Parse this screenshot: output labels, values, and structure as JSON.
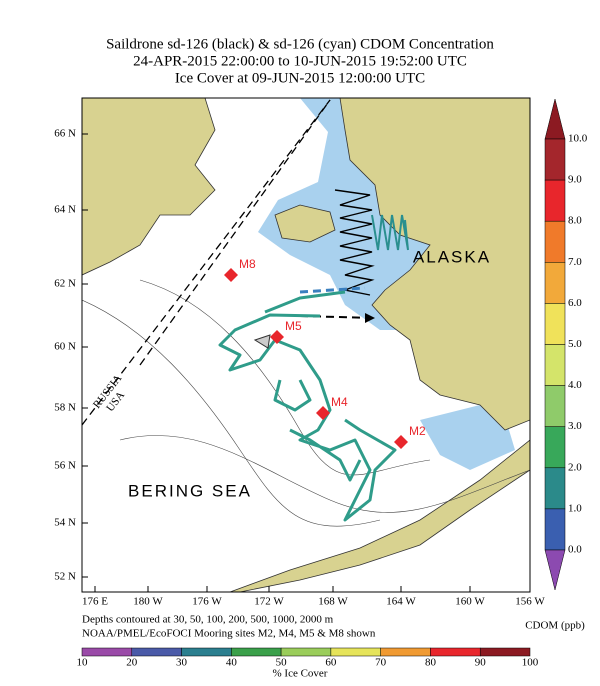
{
  "title": [
    "Saildrone sd-126 (black) & sd-126 (cyan) CDOM Concentration",
    "24-APR-2015 22:00:00 to 10-JUN-2015 19:52:00 UTC",
    "Ice Cover at 09-JUN-2015 12:00:00 UTC"
  ],
  "map": {
    "lat_labels": [
      "66 N",
      "64 N",
      "62 N",
      "60 N",
      "58 N",
      "56 N",
      "54 N",
      "52 N"
    ],
    "lon_labels": [
      "176 E",
      "180 W",
      "176 W",
      "172 W",
      "168 W",
      "164 W",
      "160 W",
      "156 W"
    ],
    "place_labels": [
      "ALASKA",
      "BERING SEA",
      "RUSSIA",
      "USA"
    ],
    "moorings": [
      "M8",
      "M5",
      "M4",
      "M2"
    ]
  },
  "colorbar": {
    "labels": [
      "10.0",
      "9.0",
      "8.0",
      "7.0",
      "6.0",
      "5.0",
      "4.0",
      "3.0",
      "2.0",
      "1.0",
      "0.0"
    ],
    "title": "CDOM (ppb)"
  },
  "notes": [
    "Depths contoured at 30, 50, 100, 200, 500, 1000, 2000 m",
    "NOAA/PMEL/EcoFOCI Mooring sites M2, M4, M5 & M8 shown"
  ],
  "ice_bar": {
    "labels": [
      "10",
      "20",
      "30",
      "40",
      "50",
      "60",
      "70",
      "80",
      "90",
      "100"
    ],
    "title": "% Ice Cover"
  }
}
